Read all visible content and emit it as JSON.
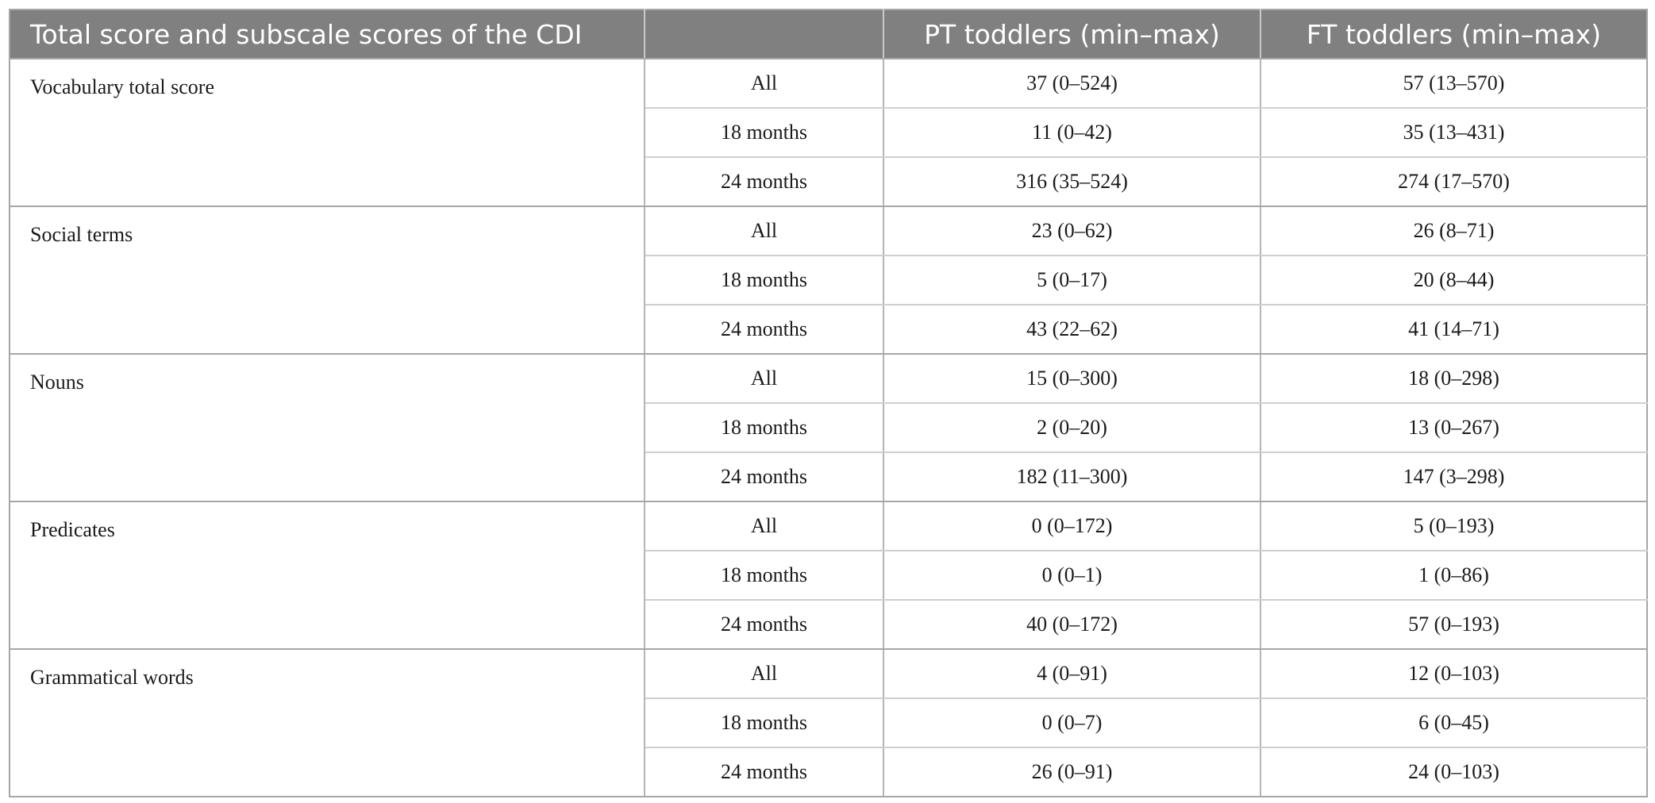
{
  "header": {
    "col1": "Total score and subscale scores of the CDI",
    "col2": "",
    "col3": "PT toddlers (min–max)",
    "col4": "FT toddlers (min–max)"
  },
  "groups": [
    {
      "label": "Vocabulary total score",
      "rows": [
        {
          "age": "All",
          "pt": "37 (0–524)",
          "ft": "57 (13–570)"
        },
        {
          "age": "18 months",
          "pt": "11 (0–42)",
          "ft": "35 (13–431)"
        },
        {
          "age": "24 months",
          "pt": "316 (35–524)",
          "ft": "274 (17–570)"
        }
      ]
    },
    {
      "label": "Social terms",
      "rows": [
        {
          "age": "All",
          "pt": "23 (0–62)",
          "ft": "26 (8–71)"
        },
        {
          "age": "18 months",
          "pt": "5 (0–17)",
          "ft": "20 (8–44)"
        },
        {
          "age": "24 months",
          "pt": "43 (22–62)",
          "ft": "41 (14–71)"
        }
      ]
    },
    {
      "label": "Nouns",
      "rows": [
        {
          "age": "All",
          "pt": "15 (0–300)",
          "ft": "18 (0–298)"
        },
        {
          "age": "18 months",
          "pt": "2 (0–20)",
          "ft": "13 (0–267)"
        },
        {
          "age": "24 months",
          "pt": "182 (11–300)",
          "ft": "147 (3–298)"
        }
      ]
    },
    {
      "label": "Predicates",
      "rows": [
        {
          "age": "All",
          "pt": "0 (0–172)",
          "ft": "5 (0–193)"
        },
        {
          "age": "18 months",
          "pt": "0 (0–1)",
          "ft": "1 (0–86)"
        },
        {
          "age": "24 months",
          "pt": "40 (0–172)",
          "ft": "57 (0–193)"
        }
      ]
    },
    {
      "label": "Grammatical words",
      "rows": [
        {
          "age": "All",
          "pt": "4 (0–91)",
          "ft": "12 (0–103)"
        },
        {
          "age": "18 months",
          "pt": "0 (0–7)",
          "ft": "6 (0–45)"
        },
        {
          "age": "24 months",
          "pt": "26 (0–91)",
          "ft": "24 (0–103)"
        }
      ]
    }
  ]
}
